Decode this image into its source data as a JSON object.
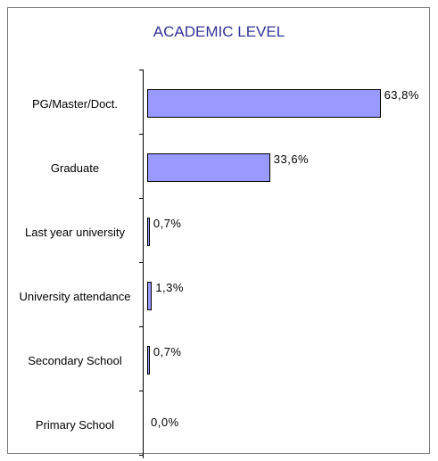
{
  "chart_data": {
    "type": "bar",
    "orientation": "horizontal",
    "title": "ACADEMIC LEVEL",
    "categories": [
      "PG/Master/Doct.",
      "Graduate",
      "Last year university",
      "University attendance",
      "Secondary School",
      "Primary School"
    ],
    "values": [
      63.8,
      33.6,
      0.7,
      1.3,
      0.7,
      0.0
    ],
    "value_labels": [
      "63,8%",
      "33,6%",
      "0,7%",
      "1,3%",
      "0,7%",
      "0,0%"
    ],
    "color": "#9999ff"
  }
}
